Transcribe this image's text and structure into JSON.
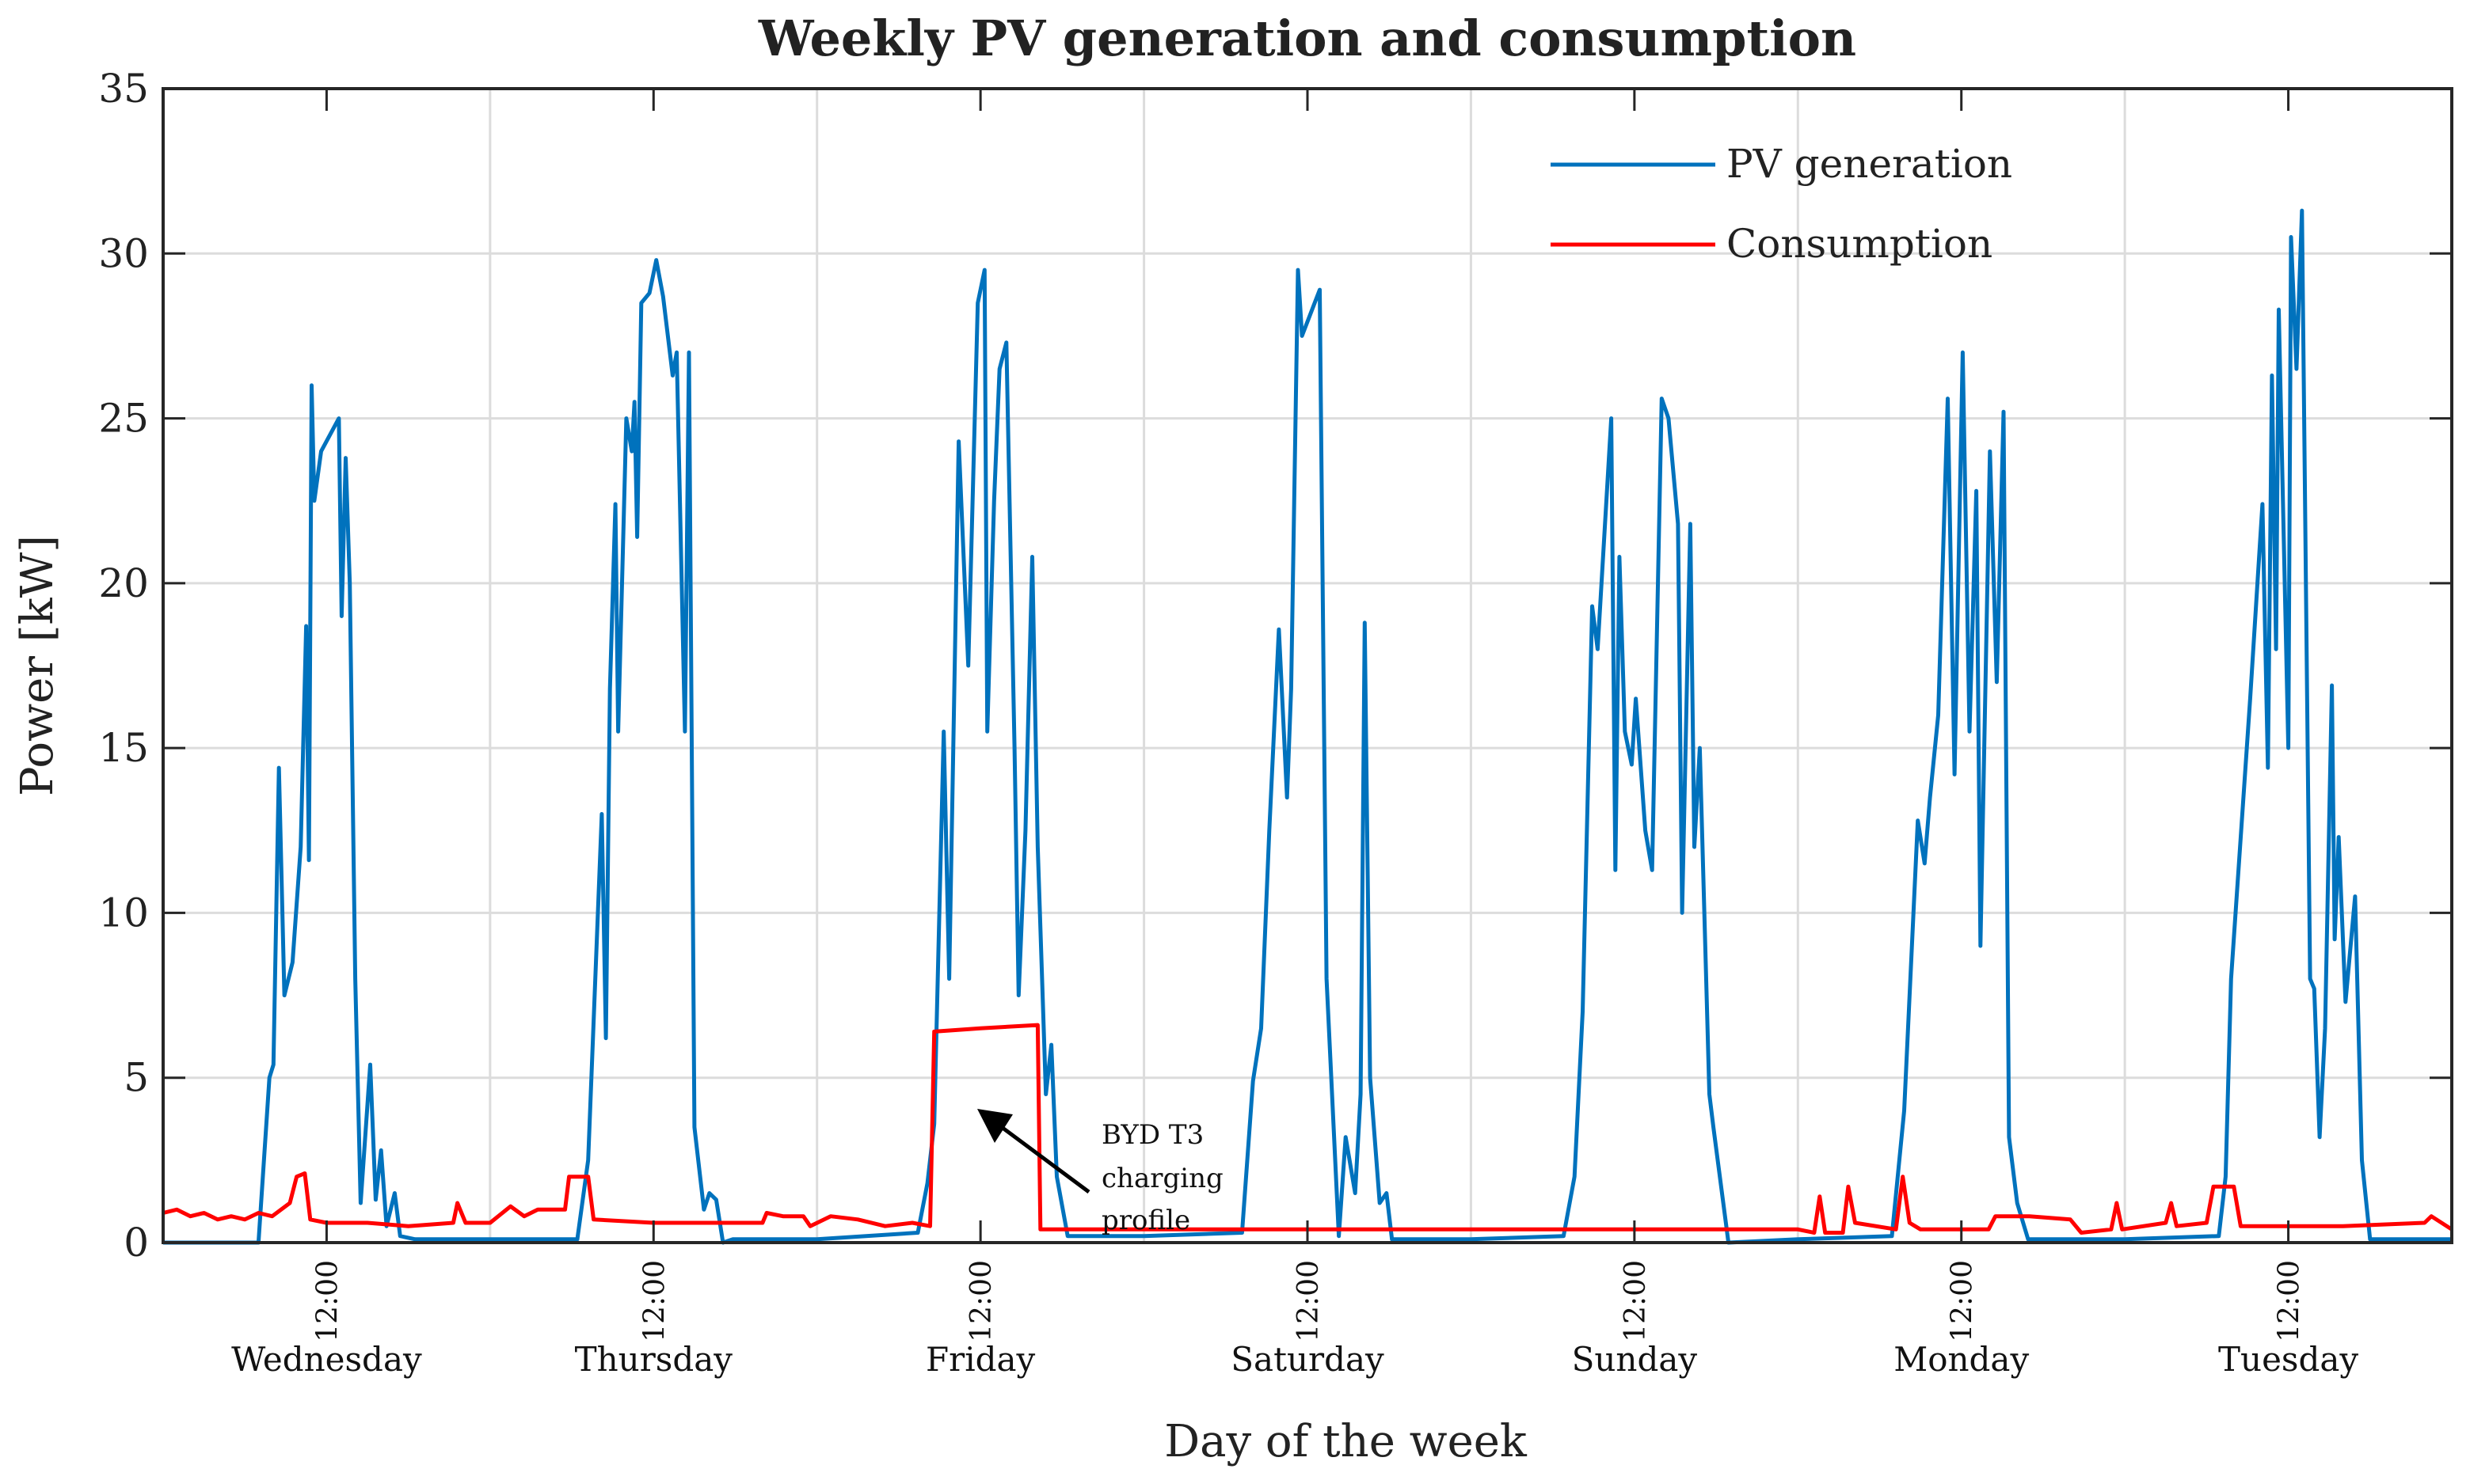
{
  "chart_data": {
    "type": "line",
    "title": "Weekly PV generation and consumption",
    "xlabel": "Day of the week",
    "ylabel": "Power [kW]",
    "xunit": "hours since Wednesday 00:00",
    "xlim": [
      0,
      168
    ],
    "ylim": [
      0,
      35
    ],
    "yticks": [
      0,
      5,
      10,
      15,
      20,
      25,
      30,
      35
    ],
    "xtick_label": "12:00",
    "xticks": [
      12,
      36,
      60,
      84,
      108,
      132,
      156
    ],
    "day_labels": [
      "Wednesday",
      "Thursday",
      "Friday",
      "Saturday",
      "Sunday",
      "Monday",
      "Tuesday"
    ],
    "grid": true,
    "legend_position": "top-right",
    "annotation": {
      "lines": [
        "BYD T3",
        "charging",
        "profile"
      ],
      "points_to": [
        58.5,
        5
      ]
    },
    "series": [
      {
        "name": "PV generation",
        "color": "#0072BD",
        "points": [
          [
            0,
            0
          ],
          [
            7.0,
            0
          ],
          [
            7.8,
            5
          ],
          [
            8.1,
            5.4
          ],
          [
            8.5,
            14.4
          ],
          [
            8.9,
            7.5
          ],
          [
            9.5,
            8.5
          ],
          [
            10.1,
            12
          ],
          [
            10.5,
            18.7
          ],
          [
            10.7,
            11.6
          ],
          [
            10.9,
            26
          ],
          [
            11.1,
            22.5
          ],
          [
            11.6,
            24
          ],
          [
            12.9,
            25
          ],
          [
            13.1,
            19
          ],
          [
            13.4,
            23.8
          ],
          [
            13.7,
            20
          ],
          [
            14.1,
            8
          ],
          [
            14.5,
            1.2
          ],
          [
            15.2,
            5.4
          ],
          [
            15.6,
            1.3
          ],
          [
            16.0,
            2.8
          ],
          [
            16.4,
            0.5
          ],
          [
            17.0,
            1.5
          ],
          [
            17.4,
            0.2
          ],
          [
            18.5,
            0.1
          ],
          [
            24,
            0.1
          ],
          [
            30.4,
            0.1
          ],
          [
            31.2,
            2.5
          ],
          [
            32.2,
            13
          ],
          [
            32.5,
            6.2
          ],
          [
            32.8,
            16.8
          ],
          [
            33.2,
            22.4
          ],
          [
            33.4,
            15.5
          ],
          [
            34.0,
            25
          ],
          [
            34.4,
            24
          ],
          [
            34.6,
            25.5
          ],
          [
            34.8,
            21.4
          ],
          [
            35.1,
            28.5
          ],
          [
            35.7,
            28.8
          ],
          [
            36.2,
            29.8
          ],
          [
            36.7,
            28.7
          ],
          [
            37.4,
            26.3
          ],
          [
            37.7,
            27
          ],
          [
            38.3,
            15.5
          ],
          [
            38.6,
            27
          ],
          [
            39.0,
            3.5
          ],
          [
            39.7,
            1
          ],
          [
            40.1,
            1.5
          ],
          [
            40.6,
            1.3
          ],
          [
            41.1,
            0
          ],
          [
            41.8,
            0.1
          ],
          [
            48,
            0.1
          ],
          [
            55.4,
            0.3
          ],
          [
            56.1,
            1.8
          ],
          [
            56.6,
            3.6
          ],
          [
            57.3,
            15.5
          ],
          [
            57.7,
            8
          ],
          [
            58.4,
            24.3
          ],
          [
            59.1,
            17.5
          ],
          [
            59.8,
            28.5
          ],
          [
            60.3,
            29.5
          ],
          [
            60.5,
            15.5
          ],
          [
            61.0,
            22.5
          ],
          [
            61.4,
            26.5
          ],
          [
            61.9,
            27.3
          ],
          [
            62.5,
            15
          ],
          [
            62.8,
            7.5
          ],
          [
            63.3,
            12.5
          ],
          [
            63.8,
            20.8
          ],
          [
            64.2,
            12
          ],
          [
            64.8,
            4.5
          ],
          [
            65.2,
            6
          ],
          [
            65.6,
            2
          ],
          [
            66.4,
            0.2
          ],
          [
            72,
            0.2
          ],
          [
            79.2,
            0.3
          ],
          [
            80.0,
            4.9
          ],
          [
            80.6,
            6.5
          ],
          [
            81.2,
            12.5
          ],
          [
            81.9,
            18.6
          ],
          [
            82.5,
            13.5
          ],
          [
            82.8,
            16.8
          ],
          [
            83.3,
            29.5
          ],
          [
            83.6,
            27.5
          ],
          [
            84.9,
            28.9
          ],
          [
            85.4,
            8
          ],
          [
            86.3,
            0.2
          ],
          [
            86.8,
            3.2
          ],
          [
            87.5,
            1.5
          ],
          [
            87.9,
            4.5
          ],
          [
            88.2,
            18.8
          ],
          [
            88.6,
            5
          ],
          [
            89.3,
            1.2
          ],
          [
            89.8,
            1.5
          ],
          [
            90.2,
            0.1
          ],
          [
            96,
            0.1
          ],
          [
            102.8,
            0.2
          ],
          [
            103.6,
            2
          ],
          [
            104.2,
            7
          ],
          [
            104.9,
            19.3
          ],
          [
            105.3,
            18
          ],
          [
            106.3,
            25
          ],
          [
            106.6,
            11.3
          ],
          [
            106.9,
            20.8
          ],
          [
            107.3,
            15.5
          ],
          [
            107.8,
            14.5
          ],
          [
            108.1,
            16.5
          ],
          [
            108.8,
            12.5
          ],
          [
            109.3,
            11.3
          ],
          [
            110.0,
            25.6
          ],
          [
            110.5,
            25
          ],
          [
            111.2,
            21.8
          ],
          [
            111.5,
            10
          ],
          [
            112.1,
            21.8
          ],
          [
            112.4,
            12
          ],
          [
            112.8,
            15
          ],
          [
            113.5,
            4.5
          ],
          [
            113.8,
            3.5
          ],
          [
            114.9,
            0
          ],
          [
            120,
            0.1
          ],
          [
            126.9,
            0.2
          ],
          [
            127.8,
            4
          ],
          [
            128.8,
            12.8
          ],
          [
            129.3,
            11.5
          ],
          [
            129.7,
            13.5
          ],
          [
            130.3,
            16
          ],
          [
            131.0,
            25.6
          ],
          [
            131.5,
            14.2
          ],
          [
            132.1,
            27
          ],
          [
            132.6,
            15.5
          ],
          [
            133.1,
            22.8
          ],
          [
            133.4,
            9
          ],
          [
            134.1,
            24
          ],
          [
            134.6,
            17
          ],
          [
            135.1,
            25.2
          ],
          [
            135.5,
            3.2
          ],
          [
            136.1,
            1.2
          ],
          [
            136.9,
            0.1
          ],
          [
            144,
            0.1
          ],
          [
            150.9,
            0.2
          ],
          [
            151.4,
            2
          ],
          [
            151.8,
            8
          ],
          [
            153.2,
            16.5
          ],
          [
            154.1,
            22.4
          ],
          [
            154.5,
            14.4
          ],
          [
            154.8,
            26.3
          ],
          [
            155.1,
            18
          ],
          [
            155.3,
            28.3
          ],
          [
            156.0,
            15
          ],
          [
            156.2,
            30.5
          ],
          [
            156.6,
            26.5
          ],
          [
            157.0,
            31.3
          ],
          [
            157.6,
            8
          ],
          [
            157.9,
            7.7
          ],
          [
            158.3,
            3.2
          ],
          [
            158.7,
            6.5
          ],
          [
            159.2,
            16.9
          ],
          [
            159.4,
            9.2
          ],
          [
            159.7,
            12.3
          ],
          [
            160.2,
            7.3
          ],
          [
            160.9,
            10.5
          ],
          [
            161.4,
            2.5
          ],
          [
            162.0,
            0.1
          ],
          [
            168,
            0.1
          ]
        ]
      },
      {
        "name": "Consumption",
        "color": "#FF0000",
        "points": [
          [
            0,
            0.9
          ],
          [
            1,
            1.0
          ],
          [
            2,
            0.8
          ],
          [
            3,
            0.9
          ],
          [
            4,
            0.7
          ],
          [
            5,
            0.8
          ],
          [
            6,
            0.7
          ],
          [
            7,
            0.9
          ],
          [
            8,
            0.8
          ],
          [
            9.3,
            1.2
          ],
          [
            9.8,
            2.0
          ],
          [
            10.4,
            2.1
          ],
          [
            10.8,
            0.7
          ],
          [
            12,
            0.6
          ],
          [
            15,
            0.6
          ],
          [
            18,
            0.5
          ],
          [
            21.3,
            0.6
          ],
          [
            21.6,
            1.2
          ],
          [
            22.2,
            0.6
          ],
          [
            24,
            0.6
          ],
          [
            25.5,
            1.1
          ],
          [
            26.5,
            0.8
          ],
          [
            27.5,
            1.0
          ],
          [
            29.5,
            1.0
          ],
          [
            29.8,
            2.0
          ],
          [
            31.2,
            2.0
          ],
          [
            31.6,
            0.7
          ],
          [
            36,
            0.6
          ],
          [
            40,
            0.6
          ],
          [
            44,
            0.6
          ],
          [
            44.3,
            0.9
          ],
          [
            45.5,
            0.8
          ],
          [
            47,
            0.8
          ],
          [
            47.5,
            0.5
          ],
          [
            49,
            0.8
          ],
          [
            51,
            0.7
          ],
          [
            53,
            0.5
          ],
          [
            55,
            0.6
          ],
          [
            56.3,
            0.5
          ],
          [
            56.6,
            6.4
          ],
          [
            60,
            6.5
          ],
          [
            64.2,
            6.6
          ],
          [
            64.4,
            0.4
          ],
          [
            72,
            0.4
          ],
          [
            96,
            0.4
          ],
          [
            120,
            0.4
          ],
          [
            121.2,
            0.3
          ],
          [
            121.6,
            1.4
          ],
          [
            122,
            0.3
          ],
          [
            123.3,
            0.3
          ],
          [
            123.7,
            1.7
          ],
          [
            124.2,
            0.6
          ],
          [
            127.2,
            0.4
          ],
          [
            127.7,
            2.0
          ],
          [
            128.2,
            0.6
          ],
          [
            129,
            0.4
          ],
          [
            134,
            0.4
          ],
          [
            134.5,
            0.8
          ],
          [
            137,
            0.8
          ],
          [
            140,
            0.7
          ],
          [
            140.8,
            0.3
          ],
          [
            143,
            0.4
          ],
          [
            143.4,
            1.2
          ],
          [
            143.8,
            0.4
          ],
          [
            147,
            0.6
          ],
          [
            147.4,
            1.2
          ],
          [
            147.8,
            0.5
          ],
          [
            150,
            0.6
          ],
          [
            150.5,
            1.7
          ],
          [
            152,
            1.7
          ],
          [
            152.5,
            0.5
          ],
          [
            160,
            0.5
          ],
          [
            166,
            0.6
          ],
          [
            166.5,
            0.8
          ],
          [
            168,
            0.4
          ]
        ]
      }
    ]
  }
}
